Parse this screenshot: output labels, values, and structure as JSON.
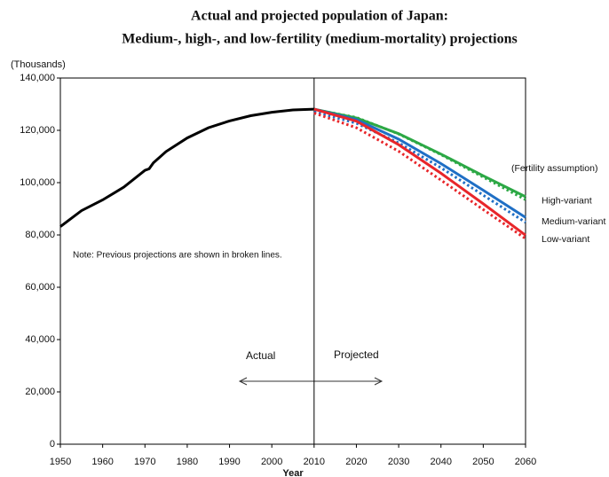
{
  "chart_data": {
    "type": "line",
    "title": [
      "Actual and projected population of Japan:",
      "Medium-, high-, and low-fertility (medium-mortality) projections"
    ],
    "y_label": "(Thousands)",
    "x_label": "Year",
    "annotations": {
      "note": "Note: Previous projections are shown in broken lines.",
      "projected": "Projected",
      "legend_title": "(Fertility assumption)"
    },
    "xlim": [
      1950,
      2060
    ],
    "ylim": [
      0,
      140000
    ],
    "xticks": [
      1950,
      1960,
      1970,
      1980,
      1990,
      2000,
      2010,
      2020,
      2030,
      2040,
      2050,
      2060
    ],
    "yticks": [
      0,
      {
        "value": 20000,
        "label": "20,000"
      },
      {
        "value": 40000,
        "label": "40,000"
      },
      {
        "value": 60000,
        "label": "60,000"
      },
      {
        "value": 80000,
        "label": "80,000"
      },
      {
        "value": 100000,
        "label": "100,000"
      },
      {
        "value": 120000,
        "label": "120,000"
      },
      {
        "value": 140000,
        "label": "140,000"
      }
    ],
    "series": [
      {
        "name": "Actual",
        "color": "#000000",
        "x": [
          1950,
          1955,
          1960,
          1965,
          1970,
          1971,
          1972,
          1975,
          1980,
          1985,
          1990,
          1995,
          2000,
          2005,
          2010
        ],
        "values": [
          83200,
          89300,
          93400,
          98300,
          104700,
          105300,
          107600,
          111900,
          117100,
          121000,
          123600,
          125600,
          126900,
          127800,
          128100
        ]
      },
      {
        "color": "#2ca845",
        "dashed": true,
        "x": [
          2010,
          2020,
          2030,
          2040,
          2050,
          2060
        ],
        "values": [
          128000,
          124900,
          118600,
          110700,
          102100,
          93500
        ]
      },
      {
        "color": "#1f6fc5",
        "dashed": true,
        "x": [
          2010,
          2020,
          2030,
          2040,
          2050,
          2060
        ],
        "values": [
          127200,
          122700,
          115200,
          105700,
          95200,
          84800
        ]
      },
      {
        "color": "#e8262a",
        "dashed": true,
        "x": [
          2010,
          2020,
          2030,
          2040,
          2050,
          2060
        ],
        "values": [
          126600,
          121000,
          112000,
          101000,
          89700,
          78600
        ]
      },
      {
        "name": "High-variant",
        "color": "#2ca845",
        "x": [
          2010,
          2020,
          2030,
          2040,
          2050,
          2060
        ],
        "values": [
          128100,
          124700,
          118700,
          110900,
          102600,
          94600
        ]
      },
      {
        "name": "Medium-variant",
        "color": "#1f6fc5",
        "x": [
          2010,
          2020,
          2030,
          2040,
          2050,
          2060
        ],
        "values": [
          128100,
          124100,
          116600,
          107300,
          97100,
          86700
        ]
      },
      {
        "name": "Low-variant",
        "color": "#e8262a",
        "x": [
          2010,
          2020,
          2030,
          2040,
          2050,
          2060
        ],
        "values": [
          128100,
          123500,
          114500,
          103600,
          91900,
          79900
        ]
      }
    ]
  }
}
